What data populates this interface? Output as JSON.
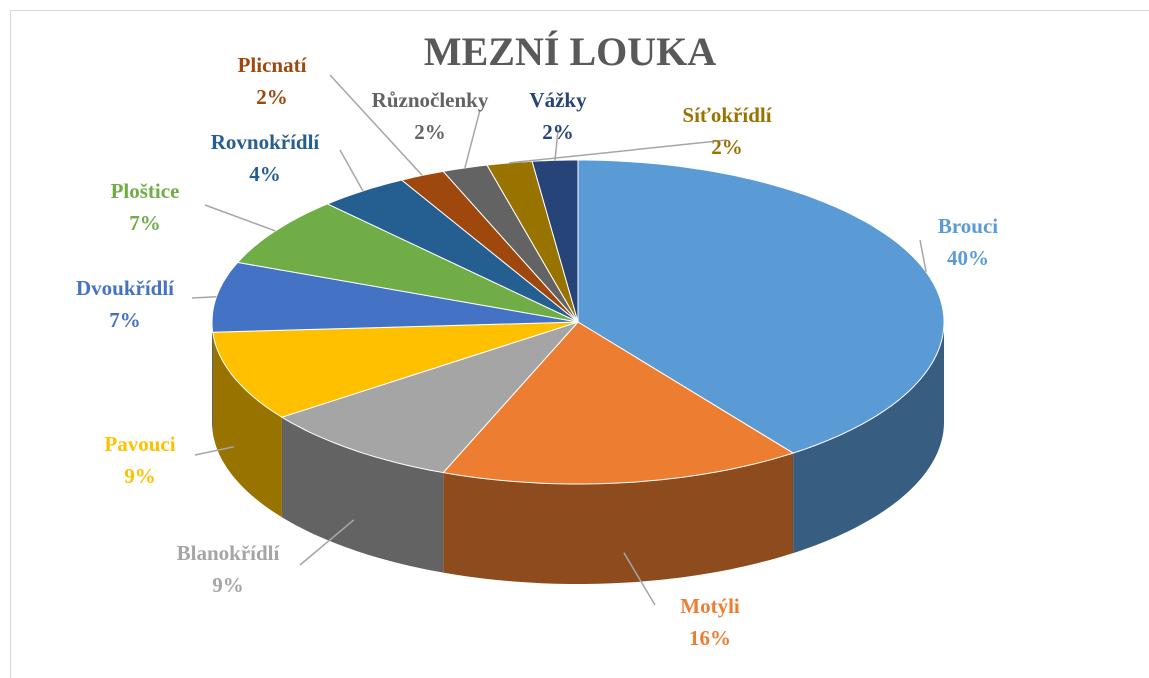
{
  "chart_data": {
    "type": "pie3d",
    "title": "MEZNÍ LOUKA",
    "categories": [
      "Brouci",
      "Motýli",
      "Blanokřídlí",
      "Pavouci",
      "Dvoukřídlí",
      "Ploštice",
      "Rovnokřídlí",
      "Plicnatí",
      "Různočlenky",
      "Síťokřídlí",
      "Vážky"
    ],
    "values": [
      40,
      16,
      9,
      9,
      7,
      7,
      4,
      2,
      2,
      2,
      2
    ],
    "value_labels": [
      "40%",
      "16%",
      "9%",
      "9%",
      "7%",
      "7%",
      "4%",
      "2%",
      "2%",
      "2%",
      "2%"
    ],
    "colors": [
      "#5b9bd5",
      "#ed7d31",
      "#a5a5a5",
      "#ffc000",
      "#4472c4",
      "#70ad47",
      "#255e91",
      "#9e480e",
      "#636363",
      "#997300",
      "#264478"
    ]
  }
}
